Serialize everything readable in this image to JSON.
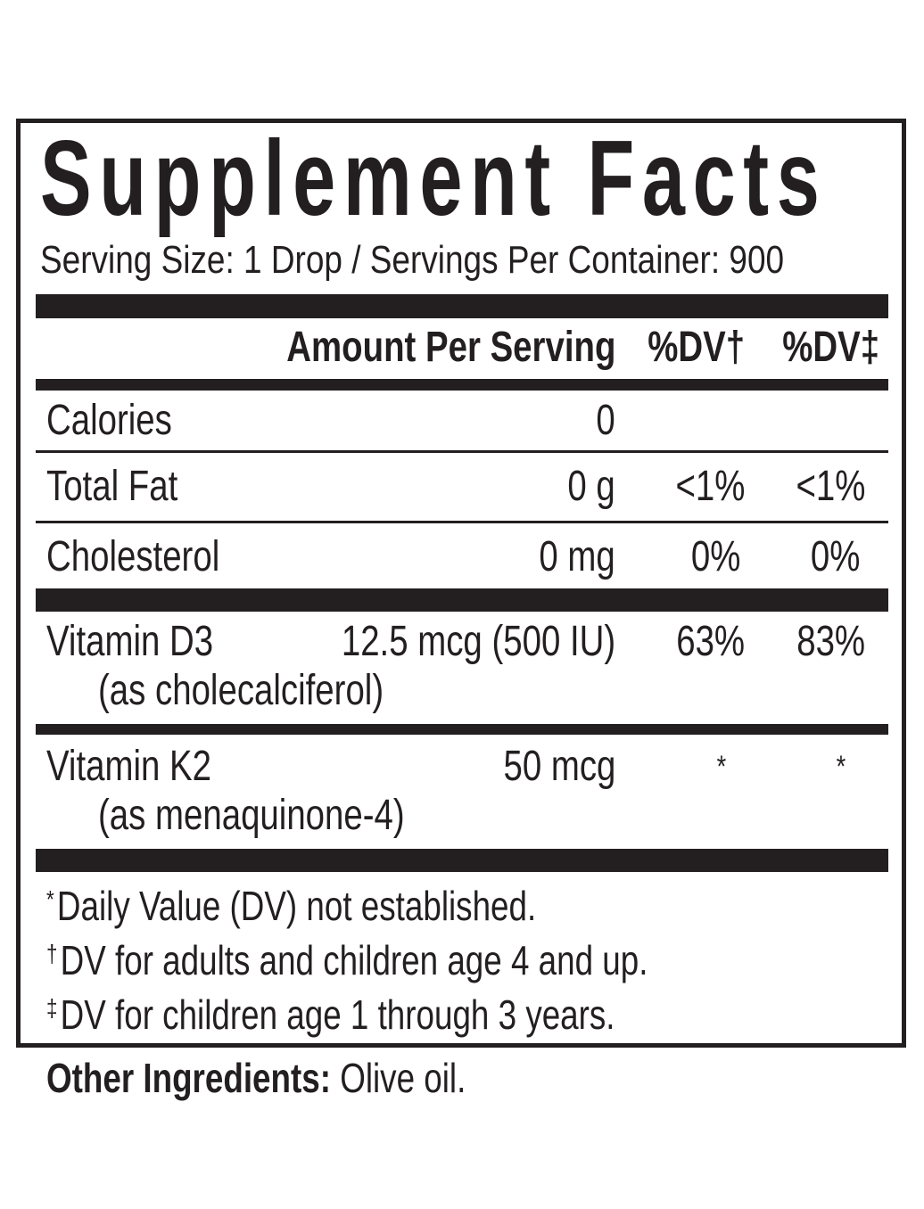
{
  "title": "Supplement Facts",
  "serving": "Serving Size: 1 Drop / Servings Per Container: 900",
  "table": {
    "header": [
      "Amount Per Serving",
      "%DV†",
      "%DV‡"
    ],
    "rows": [
      {
        "name": "Calories",
        "amount": "0"
      },
      {
        "name": "Total Fat",
        "amount": "0 g",
        "dv1": "<1%",
        "dv2": "<1%"
      },
      {
        "name": "Cholesterol",
        "amount": "0 mg",
        "dv1": "0%",
        "dv2": "0%"
      },
      {
        "name": "Vitamin D3",
        "sub": "(as cholecalciferol)",
        "amount": "12.5 mcg (500 IU)",
        "dv1": "63%",
        "dv2": "83%"
      },
      {
        "name": "Vitamin K2",
        "sub": "(as menaquinone-4)",
        "amount": "50 mcg",
        "dv1": "*",
        "dv2": "*"
      }
    ]
  },
  "footnotes": [
    {
      "symbol": "*",
      "text": "Daily Value (DV) not established."
    },
    {
      "symbol": "†",
      "text": "DV for adults and children age 4 and up."
    },
    {
      "symbol": "‡",
      "text": "DV for children age 1 through 3 years."
    }
  ],
  "other": {
    "label": "Other Ingredients:",
    "text": "Olive oil."
  }
}
